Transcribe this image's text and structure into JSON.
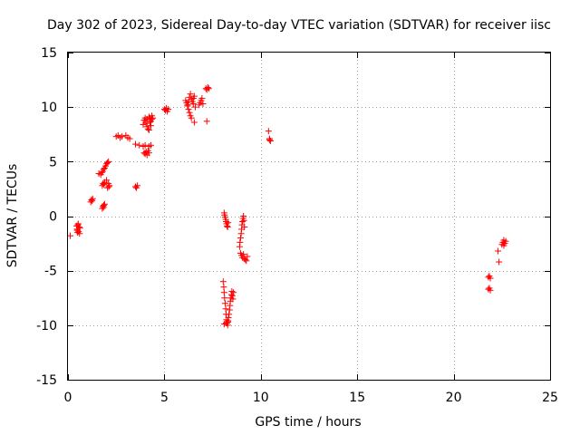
{
  "chart_data": {
    "type": "scatter",
    "title": "Day 302 of 2023, Sidereal Day-to-day VTEC variation (SDTVAR) for receiver iisc",
    "xlabel": "GPS time / hours",
    "ylabel": "SDTVAR / TECUs",
    "xlim": [
      0,
      25
    ],
    "ylim": [
      -15,
      15
    ],
    "xticks": [
      0,
      5,
      10,
      15,
      20,
      25
    ],
    "yticks": [
      -15,
      -10,
      -5,
      0,
      5,
      10,
      15
    ],
    "xtick_labels": [
      "0",
      "5",
      "10",
      "15",
      "20",
      "25"
    ],
    "ytick_labels": [
      "-15",
      "-10",
      "-5",
      "0",
      "5",
      "10",
      "15"
    ],
    "grid": true,
    "marker": "+",
    "color": "#ff0000",
    "series": [
      {
        "name": "SDTVAR",
        "x": [
          0.12,
          0.45,
          0.47,
          0.5,
          0.52,
          0.55,
          0.58,
          0.6,
          0.62,
          0.48,
          0.53,
          1.18,
          1.22,
          1.25,
          1.28,
          1.6,
          1.7,
          1.75,
          1.8,
          1.85,
          1.9,
          1.95,
          2.0,
          2.05,
          2.1,
          1.78,
          1.82,
          1.86,
          1.9,
          1.84,
          1.78,
          1.82,
          1.86,
          1.9,
          2.0,
          2.1,
          2.15,
          2.05,
          2.12,
          2.5,
          2.6,
          2.7,
          2.8,
          3.0,
          3.1,
          3.2,
          3.5,
          3.55,
          3.6,
          3.5,
          3.7,
          3.9,
          4.0,
          4.2,
          4.3,
          3.9,
          3.95,
          4.0,
          4.05,
          4.1,
          4.15,
          4.2,
          4.25,
          4.3,
          4.35,
          3.95,
          4.0,
          4.05,
          4.1,
          4.15,
          4.2,
          4.0,
          4.1,
          4.2,
          4.25,
          4.3,
          4.35,
          4.4,
          5.0,
          5.05,
          5.1,
          5.15,
          5.2,
          6.1,
          6.15,
          6.2,
          6.25,
          6.3,
          6.35,
          6.4,
          6.45,
          6.5,
          6.55,
          6.2,
          6.25,
          6.3,
          6.35,
          6.4,
          6.5,
          6.55,
          6.6,
          6.8,
          6.85,
          6.9,
          6.95,
          7.0,
          7.15,
          7.2,
          7.25,
          7.3,
          7.2,
          10.4,
          10.45,
          10.5,
          10.45,
          8.1,
          8.12,
          8.15,
          8.18,
          8.2,
          8.22,
          8.25,
          8.28,
          8.3,
          8.05,
          8.08,
          8.1,
          8.12,
          8.15,
          8.18,
          8.2,
          8.22,
          8.25,
          8.28,
          8.3,
          8.32,
          8.35,
          8.38,
          8.4,
          8.42,
          8.45,
          8.48,
          8.5,
          8.52,
          8.55,
          8.58,
          8.1,
          8.2,
          8.3,
          8.9,
          8.92,
          8.95,
          8.98,
          9.0,
          9.02,
          9.05,
          9.08,
          9.1,
          9.12,
          9.15,
          8.95,
          9.0,
          9.05,
          9.1,
          9.15,
          9.2,
          9.25,
          9.3,
          21.8,
          21.85,
          21.9,
          21.8,
          21.85,
          21.9,
          22.3,
          22.35,
          22.5,
          22.55,
          22.6,
          22.65,
          22.7,
          22.6
        ],
        "y": [
          -1.8,
          -0.9,
          -1.2,
          -1.5,
          -0.8,
          -1.4,
          -1.0,
          -1.6,
          -1.1,
          -1.3,
          -0.7,
          1.3,
          1.5,
          1.4,
          1.6,
          3.9,
          3.8,
          4.0,
          4.1,
          4.3,
          4.4,
          4.6,
          4.8,
          4.9,
          5.0,
          0.7,
          0.9,
          1.0,
          1.1,
          0.8,
          2.8,
          3.0,
          2.9,
          3.1,
          3.3,
          3.0,
          2.8,
          2.6,
          2.7,
          7.3,
          7.4,
          7.2,
          7.3,
          7.4,
          7.2,
          7.1,
          2.7,
          2.6,
          2.8,
          6.6,
          6.5,
          6.4,
          6.5,
          6.4,
          6.5,
          8.4,
          8.8,
          9.0,
          8.5,
          8.2,
          8.0,
          7.9,
          8.6,
          8.3,
          8.9,
          5.8,
          5.7,
          5.9,
          5.6,
          6.0,
          5.8,
          8.8,
          8.9,
          9.1,
          9.0,
          8.7,
          9.2,
          9.0,
          9.8,
          9.7,
          9.9,
          9.6,
          9.8,
          10.6,
          10.4,
          10.2,
          9.8,
          9.5,
          9.2,
          9.0,
          10.5,
          10.8,
          11.0,
          10.1,
          10.5,
          10.9,
          11.2,
          10.7,
          10.3,
          8.6,
          10.0,
          10.2,
          10.4,
          10.6,
          10.8,
          10.3,
          11.7,
          11.6,
          11.8,
          11.7,
          8.7,
          7.8,
          7.1,
          6.9,
          7.0,
          0.3,
          0.1,
          -0.1,
          -0.3,
          -0.5,
          -0.7,
          -0.9,
          -1.0,
          -0.6,
          -6.0,
          -6.5,
          -7.0,
          -7.5,
          -8.0,
          -8.5,
          -9.0,
          -9.5,
          -9.8,
          -10.0,
          -9.6,
          -9.3,
          -9.0,
          -8.6,
          -8.2,
          -7.8,
          -7.5,
          -7.2,
          -6.9,
          -7.3,
          -7.6,
          -7.0,
          -9.9,
          -9.8,
          -9.7,
          -2.8,
          -2.4,
          -2.0,
          -1.6,
          -1.2,
          -0.8,
          -0.5,
          -0.2,
          0.0,
          -0.4,
          -1.0,
          -3.4,
          -3.6,
          -3.8,
          -3.5,
          -3.9,
          -4.0,
          -4.1,
          -3.7,
          -5.6,
          -5.5,
          -5.7,
          -6.7,
          -6.6,
          -6.8,
          -3.2,
          -4.2,
          -2.6,
          -2.4,
          -2.2,
          -2.5,
          -2.3,
          -2.7
        ]
      }
    ]
  }
}
